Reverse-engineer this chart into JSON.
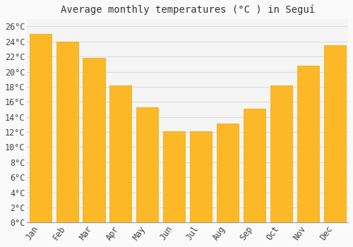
{
  "months": [
    "Jan",
    "Feb",
    "Mar",
    "Apr",
    "May",
    "Jun",
    "Jul",
    "Aug",
    "Sep",
    "Oct",
    "Nov",
    "Dec"
  ],
  "values": [
    25.0,
    24.0,
    21.8,
    18.2,
    15.3,
    12.1,
    12.1,
    13.1,
    15.1,
    18.2,
    20.8,
    23.5
  ],
  "bar_color": "#FDB827",
  "bar_edge_color": "#E8A800",
  "background_color": "#FAFAFA",
  "plot_bg_color": "#F5F5F5",
  "grid_color": "#DDDDDD",
  "title": "Average monthly temperatures (°C ) in Seguí",
  "title_fontsize": 10,
  "tick_label_fontsize": 8.5,
  "ytick_labels": [
    "0°C",
    "2°C",
    "4°C",
    "6°C",
    "8°C",
    "10°C",
    "12°C",
    "14°C",
    "16°C",
    "18°C",
    "20°C",
    "22°C",
    "24°C",
    "26°C"
  ],
  "ytick_values": [
    0,
    2,
    4,
    6,
    8,
    10,
    12,
    14,
    16,
    18,
    20,
    22,
    24,
    26
  ],
  "ylim": [
    0,
    27
  ],
  "font_family": "monospace"
}
